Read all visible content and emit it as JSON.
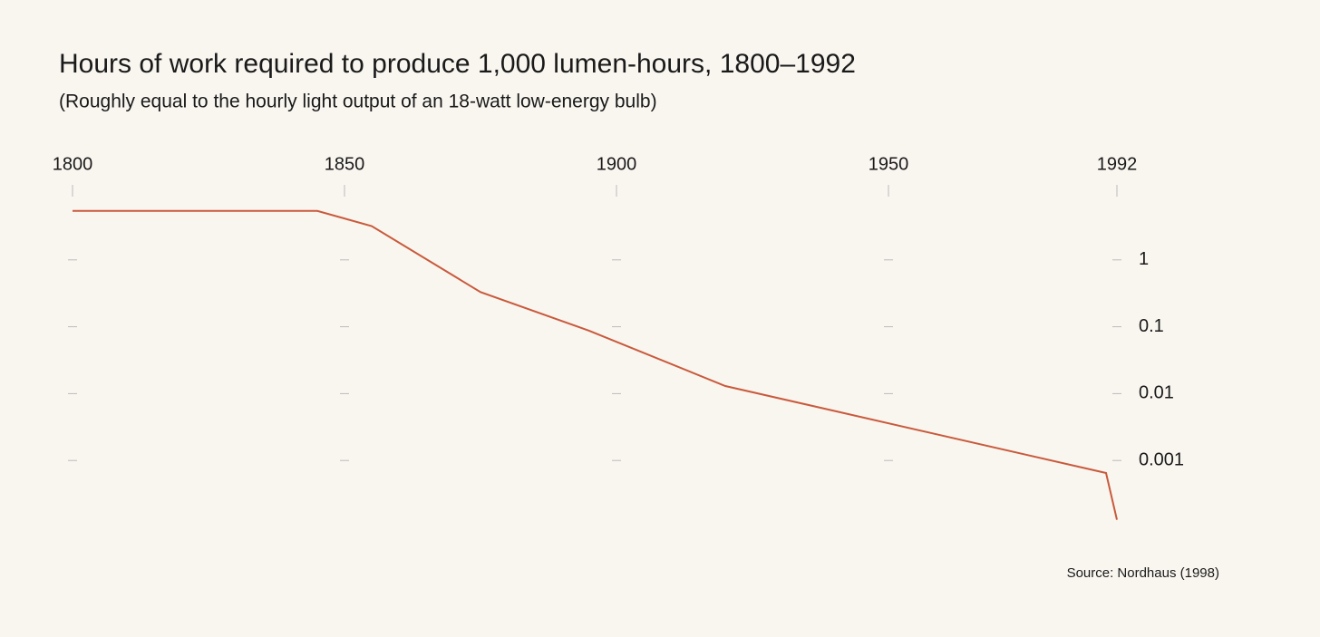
{
  "chart_data": {
    "type": "line",
    "title": "Hours of work required to produce 1,000 lumen-hours, 1800–1992",
    "subtitle": "(Roughly equal to the hourly light output of an 18-watt low-energy bulb)",
    "source": "Source: Nordhaus (1998)",
    "x": [
      1800,
      1845,
      1855,
      1875,
      1895,
      1920,
      1990,
      1992
    ],
    "series": [
      {
        "color": "#c95a3c",
        "values": [
          5.4,
          5.4,
          3.2,
          0.33,
          0.087,
          0.013,
          0.00065,
          0.00013
        ]
      }
    ],
    "xlim": [
      1800,
      1992
    ],
    "xticks": [
      1800,
      1850,
      1900,
      1950,
      1992
    ],
    "ylim": [
      0.0001,
      10
    ],
    "yticks": [
      1,
      0.1,
      0.01,
      0.001
    ],
    "log_y": true,
    "grid": true
  }
}
